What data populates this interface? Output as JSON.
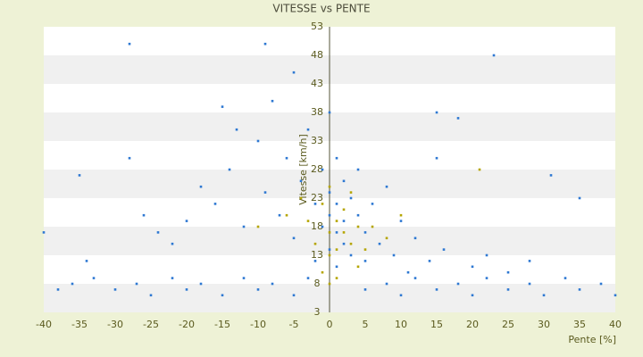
{
  "chart_data": {
    "type": "scatter",
    "title": "VITESSE vs PENTE",
    "x_label": "Pente [%]",
    "y_label": "Vitesse [km/h]",
    "xlim": [
      -40,
      40
    ],
    "xticks": [
      -40,
      -35,
      -30,
      -25,
      -20,
      -15,
      -10,
      -5,
      0,
      5,
      10,
      15,
      20,
      25,
      30,
      35,
      40
    ],
    "ylim": [
      3,
      53
    ],
    "yticks": [
      3,
      8,
      13,
      18,
      23,
      28,
      33,
      38,
      43,
      48,
      53
    ],
    "grid": true,
    "series": [
      {
        "color": "#2e78d2",
        "x": [
          -38,
          -36,
          -33,
          -30,
          -27,
          -25,
          -22,
          -20,
          -18,
          -15,
          -12,
          -10,
          -8,
          -5,
          -3,
          5,
          8,
          10,
          12,
          15,
          18,
          20,
          22,
          25,
          28,
          30,
          33,
          35,
          38,
          40,
          -34,
          -28,
          -26,
          -24,
          -22,
          -20,
          -18,
          -16,
          -14,
          -12,
          -10,
          -9,
          -8,
          -7,
          -6,
          -5,
          -4,
          -3,
          -2,
          -2,
          -1,
          -1,
          0,
          0,
          0,
          0,
          1,
          1,
          1,
          1,
          2,
          2,
          2,
          3,
          3,
          4,
          4,
          5,
          5,
          6,
          7,
          8,
          9,
          10,
          11,
          12,
          14,
          15,
          16,
          18,
          20,
          22,
          25,
          28,
          31,
          35,
          -28,
          -15,
          -9,
          -5,
          15,
          23,
          -13,
          -35,
          -40
        ],
        "values": [
          7,
          8,
          9,
          7,
          8,
          6,
          9,
          7,
          8,
          6,
          9,
          7,
          8,
          6,
          9,
          7,
          8,
          6,
          9,
          7,
          8,
          6,
          9,
          7,
          8,
          6,
          9,
          7,
          8,
          6,
          12,
          30,
          20,
          17,
          15,
          19,
          25,
          22,
          28,
          18,
          33,
          24,
          40,
          20,
          30,
          16,
          26,
          35,
          22,
          12,
          28,
          18,
          38,
          24,
          14,
          20,
          30,
          22,
          17,
          11,
          26,
          19,
          15,
          23,
          13,
          20,
          28,
          17,
          12,
          22,
          15,
          25,
          13,
          19,
          10,
          16,
          12,
          38,
          14,
          37,
          11,
          13,
          10,
          12,
          27,
          23,
          50,
          39,
          50,
          45,
          30,
          48,
          35,
          27,
          17
        ]
      },
      {
        "color": "#b5a500",
        "x": [
          -3,
          -2,
          -1,
          0,
          0,
          0,
          1,
          1,
          2,
          2,
          3,
          3,
          4,
          -4,
          -6,
          5,
          6,
          -1,
          0,
          1,
          4,
          8,
          10,
          -10,
          21
        ],
        "values": [
          19,
          15,
          22,
          17,
          13,
          25,
          19,
          14,
          21,
          17,
          15,
          24,
          18,
          23,
          20,
          14,
          18,
          10,
          8,
          9,
          11,
          16,
          20,
          18,
          28
        ]
      }
    ]
  }
}
